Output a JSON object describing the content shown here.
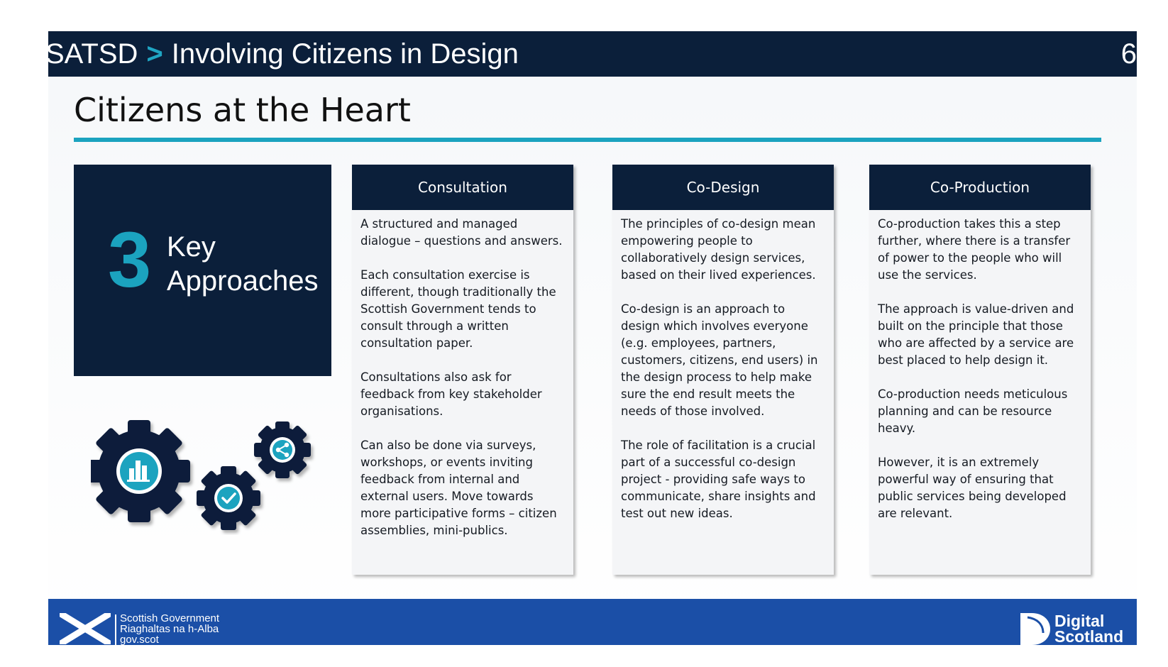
{
  "header": {
    "breadcrumb_root": "SATSD",
    "breadcrumb_separator": ">",
    "breadcrumb_current": "Involving Citizens in Design",
    "page_number": "6"
  },
  "slide": {
    "title": "Citizens at the Heart",
    "key_box": {
      "number": "3",
      "line1": "Key",
      "line2": "Approaches"
    },
    "gear_icons": [
      "bar-chart-gear-icon",
      "checkmark-gear-icon",
      "share-gear-icon"
    ],
    "cards": [
      {
        "heading": "Consultation",
        "paragraphs": [
          "A structured and managed dialogue – questions and answers.",
          "Each consultation exercise is different, though traditionally the Scottish Government tends to consult through a written consultation paper.",
          "Consultations also ask for feedback from key stakeholder organisations.",
          "Can also be done via surveys, workshops, or events inviting feedback from internal and external users. Move towards more participative forms – citizen assemblies, mini-publics."
        ]
      },
      {
        "heading": "Co-Design",
        "paragraphs": [
          "The principles of co-design mean empowering people to collaboratively design services, based on their lived experiences.",
          "Co-design is an approach to design which involves everyone (e.g. employees, partners, customers, citizens, end users) in the design process to help make sure the end result meets the needs of those involved.",
          "The role of facilitation is a crucial part of a successful co-design project - providing safe ways to communicate, share insights and test out new ideas."
        ]
      },
      {
        "heading": "Co-Production",
        "paragraphs": [
          "Co-production takes this a step further, where there is a transfer of power to the people who will use the services.",
          "The approach is value-driven and built on the principle that those who are affected by a service are best placed to help design it.",
          "Co-production needs meticulous planning and can be resource heavy.",
          "However, it is an extremely powerful way of ensuring that public services being developed are relevant."
        ]
      }
    ]
  },
  "footer": {
    "sg_line1": "Scottish Government",
    "sg_line2": "Riaghaltas na h-Alba",
    "sg_line3": "gov.scot",
    "ds_line1": "Digital",
    "ds_line2": "Scotland"
  },
  "colors": {
    "navy": "#0b1f3a",
    "teal": "#1ba3bf",
    "footer_blue": "#1b4fa7"
  }
}
